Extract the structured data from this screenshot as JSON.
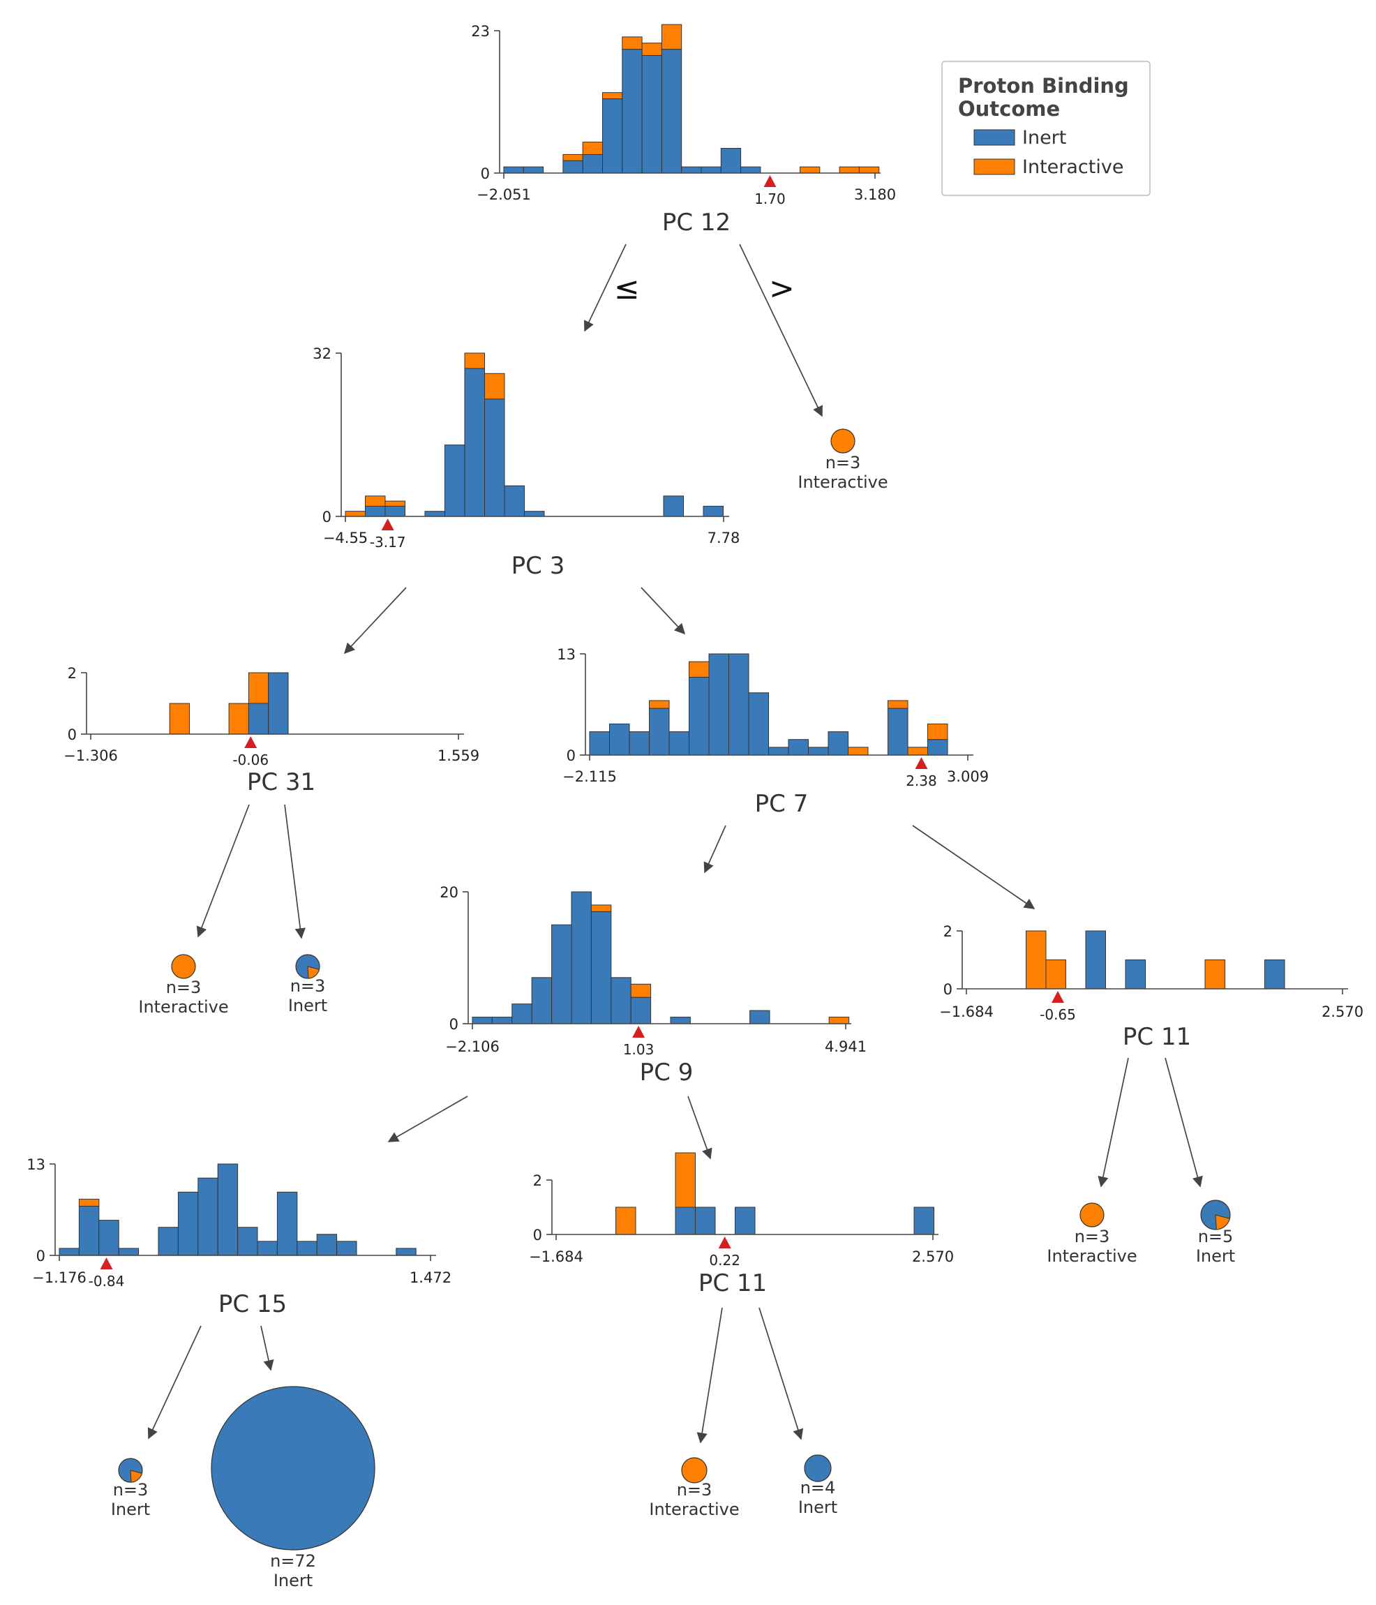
{
  "colors": {
    "inert": "#3a7ab8",
    "interactive": "#ff8000",
    "threshold": "#d42020",
    "axis": "#444444",
    "arrow": "#444444"
  },
  "legend": {
    "title_line1": "Proton Binding",
    "title_line2": "Outcome",
    "items": [
      {
        "label": "Inert",
        "color": "#3a7ab8"
      },
      {
        "label": "Interactive",
        "color": "#ff8000"
      }
    ]
  },
  "edge_labels": {
    "le": "≤",
    "gt": ">"
  },
  "splits": [
    {
      "id": "n0",
      "feature": "PC 12",
      "xmin": -2.051,
      "xmin_label": "−2.051",
      "xmax": 3.18,
      "xmax_label": "3.180",
      "ymax": 23,
      "ymax_label": "23",
      "threshold": 1.7,
      "threshold_label": "1.70",
      "inert": [
        1,
        1,
        0,
        2,
        3,
        12,
        20,
        19,
        20,
        1,
        1,
        4,
        1,
        0,
        0,
        0,
        0,
        0,
        0
      ],
      "interactive": [
        0,
        0,
        0,
        1,
        2,
        1,
        2,
        2,
        4,
        0,
        0,
        0,
        0,
        0,
        0,
        1,
        0,
        1,
        1
      ]
    },
    {
      "id": "n1",
      "feature": "PC 3",
      "xmin": -4.55,
      "xmin_label": "−4.55",
      "xmax": 7.78,
      "xmax_label": "7.78",
      "ymax": 32,
      "ymax_label": "32",
      "threshold": -3.17,
      "threshold_label": "-3.17",
      "inert": [
        0,
        2,
        2,
        0,
        1,
        14,
        29,
        23,
        6,
        1,
        0,
        0,
        0,
        0,
        0,
        0,
        4,
        0,
        2
      ],
      "interactive": [
        1,
        2,
        1,
        0,
        0,
        0,
        3,
        5,
        0,
        0,
        0,
        0,
        0,
        0,
        0,
        0,
        0,
        0,
        0
      ]
    },
    {
      "id": "n2",
      "feature": "PC 31",
      "xmin": -1.306,
      "xmin_label": "−1.306",
      "xmax": 1.559,
      "xmax_label": "1.559",
      "ymax": 2,
      "ymax_label": "2",
      "threshold": -0.06,
      "threshold_label": "-0.06",
      "inert": [
        0,
        0,
        0,
        0,
        0,
        0,
        0,
        0,
        0,
        1,
        0,
        0,
        0,
        0,
        0,
        0,
        0,
        0,
        0
      ],
      "interactive": [
        0,
        0,
        0,
        0,
        1,
        0,
        0,
        1,
        1,
        0,
        0,
        0,
        0,
        0,
        0,
        0,
        0,
        0,
        0
      ],
      "inert_bins": [
        9,
        9
      ],
      "inert_full": [
        0,
        0,
        0,
        0,
        0,
        0,
        0,
        0,
        1,
        2,
        0,
        0,
        0,
        0,
        0,
        0,
        0,
        0,
        0
      ]
    },
    {
      "id": "n3",
      "feature": "PC 7",
      "xmin": -2.115,
      "xmin_label": "−2.115",
      "xmax": 3.009,
      "xmax_label": "3.009",
      "ymax": 13,
      "ymax_label": "13",
      "threshold": 2.38,
      "threshold_label": "2.38",
      "inert": [
        3,
        4,
        3,
        6,
        3,
        10,
        13,
        13,
        8,
        1,
        2,
        1,
        3,
        0,
        0,
        6,
        0,
        2
      ],
      "interactive": [
        0,
        0,
        0,
        1,
        0,
        2,
        0,
        0,
        0,
        0,
        0,
        0,
        0,
        1,
        0,
        1,
        1,
        2
      ]
    },
    {
      "id": "n4",
      "feature": "PC 9",
      "xmin": -2.106,
      "xmin_label": "−2.106",
      "xmax": 4.941,
      "xmax_label": "4.941",
      "ymax": 20,
      "ymax_label": "20",
      "threshold": 1.03,
      "threshold_label": "1.03",
      "inert": [
        1,
        1,
        3,
        7,
        15,
        20,
        17,
        7,
        4,
        0,
        1,
        0,
        0,
        0,
        2,
        0,
        0,
        0,
        0
      ],
      "interactive": [
        0,
        0,
        0,
        0,
        0,
        0,
        1,
        0,
        2,
        0,
        0,
        0,
        0,
        0,
        0,
        0,
        0,
        0,
        1
      ]
    },
    {
      "id": "n5",
      "feature": "PC 11",
      "xmin": -1.684,
      "xmin_label": "−1.684",
      "xmax": 2.57,
      "xmax_label": "2.570",
      "ymax": 2,
      "ymax_label": "2",
      "threshold": -0.65,
      "threshold_label": "-0.65",
      "inert": [
        0,
        0,
        0,
        0,
        0,
        0,
        2,
        0,
        1,
        0,
        0,
        0,
        0,
        0,
        0,
        1,
        0,
        0,
        0
      ],
      "interactive": [
        0,
        0,
        0,
        2,
        1,
        0,
        0,
        0,
        0,
        0,
        0,
        0,
        1,
        0,
        0,
        0,
        0,
        0,
        0
      ]
    },
    {
      "id": "n6",
      "feature": "PC 15",
      "xmin": -1.176,
      "xmin_label": "−1.176",
      "xmax": 1.472,
      "xmax_label": "1.472",
      "ymax": 13,
      "ymax_label": "13",
      "threshold": -0.84,
      "threshold_label": "-0.84",
      "inert": [
        1,
        7,
        5,
        1,
        0,
        4,
        9,
        11,
        13,
        4,
        2,
        9,
        2,
        3,
        2,
        0,
        0,
        1
      ],
      "interactive": [
        0,
        1,
        0,
        0,
        0,
        0,
        0,
        0,
        0,
        0,
        0,
        0,
        0,
        0,
        0,
        0,
        0,
        0
      ]
    },
    {
      "id": "n7",
      "feature": "PC 11",
      "xmin": -1.684,
      "xmin_label": "−1.684",
      "xmax": 2.57,
      "xmax_label": "2.570",
      "ymax": 2,
      "ymax_label": "2",
      "threshold": 0.22,
      "threshold_label": "0.22",
      "inert": [
        0,
        0,
        0,
        0,
        0,
        0,
        1,
        1,
        0,
        1,
        0,
        0,
        0,
        0,
        0,
        0,
        0,
        0,
        1
      ],
      "interactive": [
        0,
        0,
        0,
        1,
        0,
        0,
        2,
        0,
        0,
        0,
        0,
        0,
        0,
        0,
        0,
        0,
        0,
        0,
        0
      ]
    }
  ],
  "leaves": [
    {
      "id": "l0",
      "count": "n=3",
      "label": "Interactive",
      "inert_fraction": 0.0
    },
    {
      "id": "l1",
      "count": "n=3",
      "label": "Interactive",
      "inert_fraction": 0.0
    },
    {
      "id": "l2",
      "count": "n=3",
      "label": "Inert",
      "inert_fraction": 0.8
    },
    {
      "id": "l3",
      "count": "n=3",
      "label": "Interactive",
      "inert_fraction": 0.0
    },
    {
      "id": "l4",
      "count": "n=5",
      "label": "Inert",
      "inert_fraction": 0.8
    },
    {
      "id": "l5",
      "count": "n=3",
      "label": "Inert",
      "inert_fraction": 0.8
    },
    {
      "id": "l6",
      "count": "n=72",
      "label": "Inert",
      "inert_fraction": 1.0
    },
    {
      "id": "l7",
      "count": "n=3",
      "label": "Interactive",
      "inert_fraction": 0.0
    },
    {
      "id": "l8",
      "count": "n=4",
      "label": "Inert",
      "inert_fraction": 1.0
    }
  ]
}
